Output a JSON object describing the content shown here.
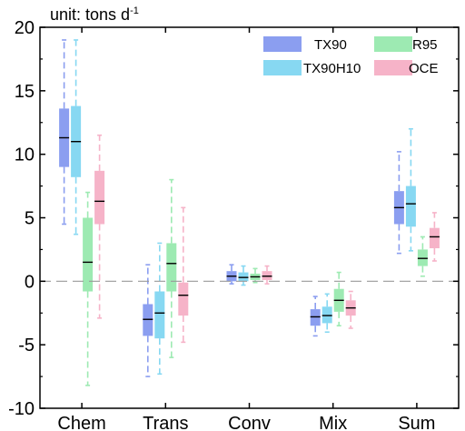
{
  "chart_data": {
    "type": "box",
    "unit_label": "unit: tons d",
    "unit_superscript": "-1",
    "categories": [
      "Chem",
      "Trans",
      "Conv",
      "Mix",
      "Sum"
    ],
    "ylim": [
      -10,
      20
    ],
    "yticks": [
      -10,
      -5,
      0,
      5,
      10,
      15,
      20
    ],
    "ytick_labels": [
      "-10",
      "-5",
      "0",
      "5",
      "10",
      "15",
      "20"
    ],
    "zero_line": "dashed",
    "legend_position": "top-right",
    "series": [
      {
        "name": "TX90",
        "color": "#8b9ef0",
        "boxes": [
          {
            "whisker_low": 4.5,
            "q1": 9.0,
            "median": 11.3,
            "q3": 13.6,
            "whisker_high": 19.0
          },
          {
            "whisker_low": -7.5,
            "q1": -4.3,
            "median": -3.0,
            "q3": -1.8,
            "whisker_high": 1.3
          },
          {
            "whisker_low": -0.2,
            "q1": 0.0,
            "median": 0.4,
            "q3": 0.8,
            "whisker_high": 1.3
          },
          {
            "whisker_low": -4.3,
            "q1": -3.5,
            "median": -2.8,
            "q3": -2.2,
            "whisker_high": -1.2
          },
          {
            "whisker_low": 2.2,
            "q1": 4.5,
            "median": 5.8,
            "q3": 7.1,
            "whisker_high": 10.2
          }
        ]
      },
      {
        "name": "TX90H10",
        "color": "#87d8f2",
        "boxes": [
          {
            "whisker_low": 3.7,
            "q1": 8.2,
            "median": 11.0,
            "q3": 13.8,
            "whisker_high": 19.0
          },
          {
            "whisker_low": -7.3,
            "q1": -4.5,
            "median": -2.5,
            "q3": -0.8,
            "whisker_high": 3.0
          },
          {
            "whisker_low": -0.3,
            "q1": 0.0,
            "median": 0.3,
            "q3": 0.7,
            "whisker_high": 1.2
          },
          {
            "whisker_low": -4.0,
            "q1": -3.3,
            "median": -2.7,
            "q3": -2.0,
            "whisker_high": -1.0
          },
          {
            "whisker_low": 2.4,
            "q1": 4.3,
            "median": 6.1,
            "q3": 7.5,
            "whisker_high": 12.0
          }
        ]
      },
      {
        "name": "R95",
        "color": "#9deab2",
        "boxes": [
          {
            "whisker_low": -8.2,
            "q1": -0.8,
            "median": 1.5,
            "q3": 5.0,
            "whisker_high": 7.0
          },
          {
            "whisker_low": -6.0,
            "q1": -0.8,
            "median": 1.4,
            "q3": 3.0,
            "whisker_high": 8.0
          },
          {
            "whisker_low": -0.1,
            "q1": 0.1,
            "median": 0.35,
            "q3": 0.6,
            "whisker_high": 1.0
          },
          {
            "whisker_low": -3.5,
            "q1": -2.4,
            "median": -1.5,
            "q3": -0.6,
            "whisker_high": 0.7
          },
          {
            "whisker_low": 0.4,
            "q1": 1.2,
            "median": 1.8,
            "q3": 2.5,
            "whisker_high": 3.5
          }
        ]
      },
      {
        "name": "OCE",
        "color": "#f6b3c8",
        "boxes": [
          {
            "whisker_low": -2.9,
            "q1": 4.5,
            "median": 6.3,
            "q3": 8.7,
            "whisker_high": 11.5
          },
          {
            "whisker_low": -4.8,
            "q1": -2.7,
            "median": -1.1,
            "q3": -0.1,
            "whisker_high": 5.8
          },
          {
            "whisker_low": -0.2,
            "q1": 0.1,
            "median": 0.4,
            "q3": 0.8,
            "whisker_high": 1.2
          },
          {
            "whisker_low": -3.7,
            "q1": -2.7,
            "median": -2.1,
            "q3": -1.5,
            "whisker_high": -0.8
          },
          {
            "whisker_low": 1.6,
            "q1": 2.6,
            "median": 3.5,
            "q3": 4.2,
            "whisker_high": 5.4
          }
        ]
      }
    ]
  }
}
